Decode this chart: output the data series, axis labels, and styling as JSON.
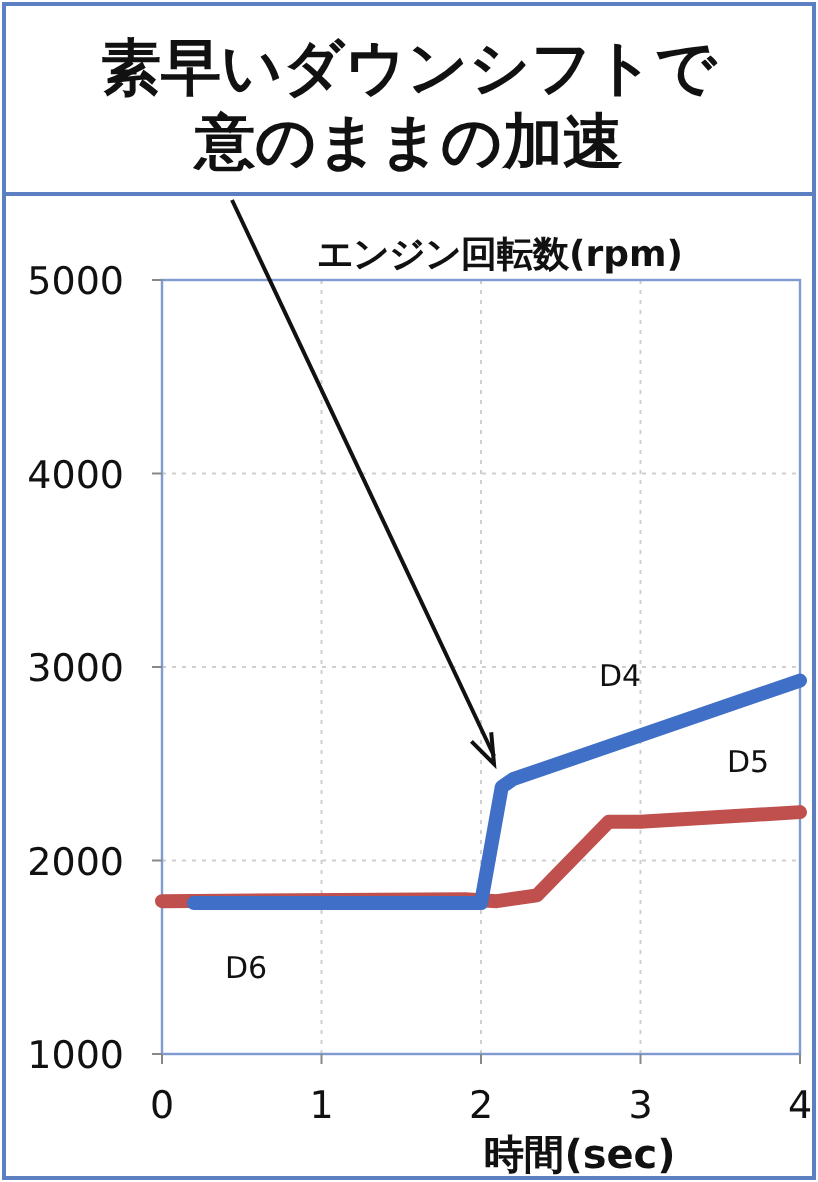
{
  "chart_data": {
    "type": "line",
    "title": "素早いダウンシフトで意のままの加速",
    "ylabel": "エンジン回転数(rpm)",
    "xlabel": "時間(sec)",
    "xlim": [
      0,
      4
    ],
    "ylim": [
      1000,
      5000
    ],
    "xticks": [
      0,
      1,
      2,
      3,
      4
    ],
    "yticks": [
      1000,
      2000,
      3000,
      4000,
      5000
    ],
    "grid": true,
    "line_style": "solid",
    "marker": "none",
    "series": [
      {
        "color": "#c0504d",
        "x": [
          0,
          1.9,
          2.1,
          2.35,
          2.8,
          3.0,
          4
        ],
        "values": [
          1790,
          1800,
          1790,
          1820,
          2200,
          2200,
          2250
        ]
      },
      {
        "color": "#3f6fc6",
        "x": [
          0.2,
          2.0,
          2.13,
          2.2,
          4
        ],
        "values": [
          1780,
          1780,
          2380,
          2420,
          2930
        ]
      }
    ],
    "annotations": [
      "D4",
      "D5",
      "D6"
    ]
  }
}
